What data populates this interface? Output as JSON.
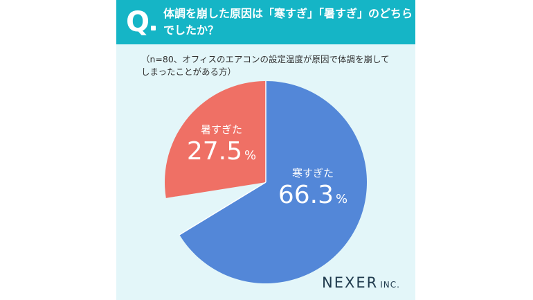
{
  "header": {
    "q_mark": "Q",
    "title_line1": "体調を崩した原因は「寒すぎ」「暑すぎ」のどちら",
    "title_line2": "でしたか？"
  },
  "note": {
    "line1": "（n=80、オフィスのエアコンの設定温度が原因で体調を崩して",
    "line2": "しまったことがある方）"
  },
  "chart_data": {
    "type": "pie",
    "slices": [
      {
        "label": "寒すぎた",
        "value": 66.3,
        "color": "#5387d8"
      },
      {
        "label": "暑すぎた",
        "value": 27.5,
        "color": "#ef7065"
      }
    ],
    "unit": "%",
    "legend": "none"
  },
  "logo": {
    "brand": "NEXER",
    "suffix": "INC."
  },
  "colors": {
    "header_bg": "#15b5c6",
    "card_bg": "#e3f6f9"
  }
}
